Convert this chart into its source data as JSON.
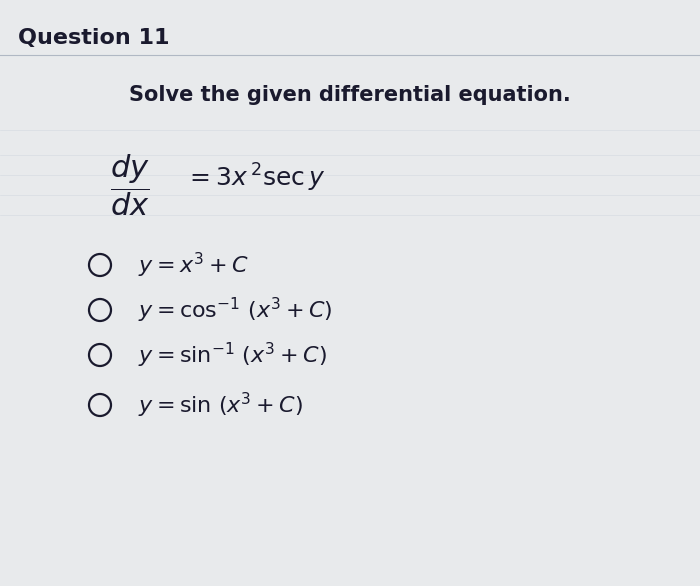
{
  "title": "Question 11",
  "subtitle": "Solve the given differential equation.",
  "equation_num": "$\\dfrac{dy}{dx}$",
  "equation_rhs": "$= 3x^{\\,2}\\mathrm{sec}\\, y$",
  "options": [
    "$y = x^3 + C$",
    "$y = \\cos^{-1}\\,(x^3 + C)$",
    "$y = \\sin^{-1}\\,(x^3 + C)$",
    "$y = \\sin\\,(x^3 + C)$"
  ],
  "bg_color": "#e8eaec",
  "text_color": "#1a1a2e",
  "title_fontsize": 16,
  "subtitle_fontsize": 15,
  "equation_fontsize": 16,
  "option_fontsize": 15,
  "fig_width": 7.0,
  "fig_height": 5.86
}
